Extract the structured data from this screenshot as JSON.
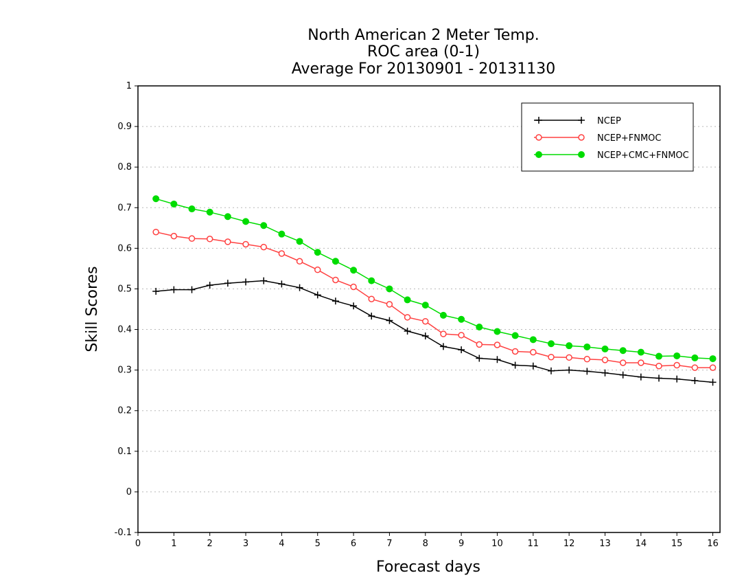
{
  "chart_data": {
    "type": "line",
    "title_lines": [
      "North American 2 Meter Temp.",
      "ROC area (0-1)",
      "Average For 20130901 - 20131130"
    ],
    "xlabel": "Forecast days",
    "ylabel": "Skill Scores",
    "xlim": [
      0,
      16.2
    ],
    "ylim": [
      -0.1,
      1
    ],
    "xticks": [
      0,
      1,
      2,
      3,
      4,
      5,
      6,
      7,
      8,
      9,
      10,
      11,
      12,
      13,
      14,
      15,
      16
    ],
    "xtick_labels": [
      "0",
      "1",
      "2",
      "3",
      "4",
      "5",
      "6",
      "7",
      "8",
      "9",
      "10",
      "11",
      "12",
      "13",
      "14",
      "15",
      "16"
    ],
    "yticks": [
      -0.1,
      0,
      0.1,
      0.2,
      0.3,
      0.4,
      0.5,
      0.6,
      0.7,
      0.8,
      0.9,
      1
    ],
    "ytick_labels": [
      "-0.1",
      "0",
      "0.1",
      "0.2",
      "0.3",
      "0.4",
      "0.5",
      "0.6",
      "0.7",
      "0.8",
      "0.9",
      "1"
    ],
    "grid": "horizontal-dotted",
    "legend_position": "top-right",
    "x": [
      0.5,
      1,
      1.5,
      2,
      2.5,
      3,
      3.5,
      4,
      4.5,
      5,
      5.5,
      6,
      6.5,
      7,
      7.5,
      8,
      8.5,
      9,
      9.5,
      10,
      10.5,
      11,
      11.5,
      12,
      12.5,
      13,
      13.5,
      14,
      14.5,
      15,
      15.5,
      16
    ],
    "series": [
      {
        "name": "NCEP",
        "color": "#000000",
        "marker": "plus",
        "values": [
          0.494,
          0.498,
          0.498,
          0.509,
          0.514,
          0.517,
          0.52,
          0.512,
          0.503,
          0.485,
          0.47,
          0.458,
          0.433,
          0.422,
          0.396,
          0.384,
          0.358,
          0.35,
          0.329,
          0.326,
          0.312,
          0.31,
          0.298,
          0.3,
          0.297,
          0.293,
          0.288,
          0.283,
          0.28,
          0.278,
          0.274,
          0.27
        ]
      },
      {
        "name": "NCEP+FNMOC",
        "color": "#ff4040",
        "marker": "open-circle",
        "values": [
          0.64,
          0.63,
          0.624,
          0.623,
          0.616,
          0.61,
          0.603,
          0.587,
          0.568,
          0.547,
          0.522,
          0.505,
          0.475,
          0.462,
          0.43,
          0.42,
          0.389,
          0.386,
          0.363,
          0.362,
          0.346,
          0.344,
          0.332,
          0.331,
          0.327,
          0.325,
          0.318,
          0.318,
          0.31,
          0.312,
          0.306,
          0.306
        ]
      },
      {
        "name": "NCEP+CMC+FNMOC",
        "color": "#00dc00",
        "marker": "filled-circle",
        "values": [
          0.722,
          0.709,
          0.697,
          0.689,
          0.678,
          0.666,
          0.656,
          0.635,
          0.617,
          0.59,
          0.568,
          0.546,
          0.52,
          0.5,
          0.473,
          0.46,
          0.435,
          0.425,
          0.406,
          0.395,
          0.385,
          0.375,
          0.365,
          0.36,
          0.357,
          0.352,
          0.348,
          0.344,
          0.334,
          0.335,
          0.33,
          0.328
        ]
      }
    ]
  }
}
